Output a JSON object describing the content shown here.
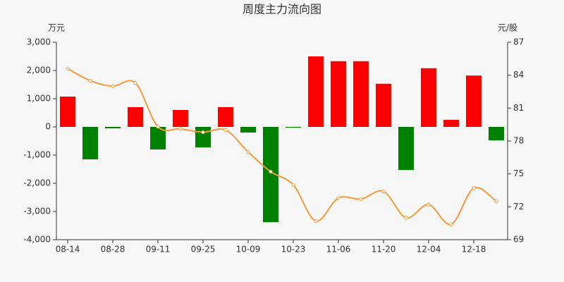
{
  "chart_data": {
    "type": "bar-line",
    "title": "周度主力流向图",
    "y_label": "万元",
    "y2_label": "元/股",
    "categories": [
      "08-14",
      null,
      "08-28",
      null,
      "09-11",
      null,
      "09-25",
      null,
      "10-09",
      null,
      "10-23",
      null,
      "11-06",
      null,
      "11-20",
      null,
      "12-04",
      null,
      "12-18",
      null
    ],
    "series": [
      {
        "type": "bar",
        "color_positive": "#ff0000",
        "color_negative": "#008000",
        "values": [
          1075,
          -1150,
          -50,
          700,
          -800,
          600,
          -730,
          700,
          -200,
          -3380,
          -30,
          2500,
          2330,
          2330,
          1530,
          -1530,
          2080,
          250,
          1820,
          -480
        ]
      },
      {
        "type": "line",
        "axis": "y2",
        "color": "#f39a3d",
        "values": [
          84.6,
          83.5,
          83.0,
          83.3,
          79.3,
          79.1,
          78.8,
          79.0,
          77.0,
          75.2,
          74.0,
          70.7,
          72.8,
          72.7,
          73.4,
          71.0,
          72.2,
          70.4,
          73.7,
          72.5
        ]
      }
    ],
    "ylim": [
      -4000,
      3000
    ],
    "yticks": [
      {
        "value": -4000,
        "label": "-4,000"
      },
      {
        "value": -3000,
        "label": "-3,000"
      },
      {
        "value": -2000,
        "label": "-2,000"
      },
      {
        "value": -1000,
        "label": "-1,000"
      },
      0,
      {
        "value": 1000,
        "label": "1,000"
      },
      {
        "value": 2000,
        "label": "2,000"
      },
      {
        "value": 3000,
        "label": "3,000"
      }
    ],
    "y2lim": [
      69,
      87
    ],
    "y2ticks": [
      69,
      72,
      75,
      78,
      81,
      84,
      87
    ]
  }
}
